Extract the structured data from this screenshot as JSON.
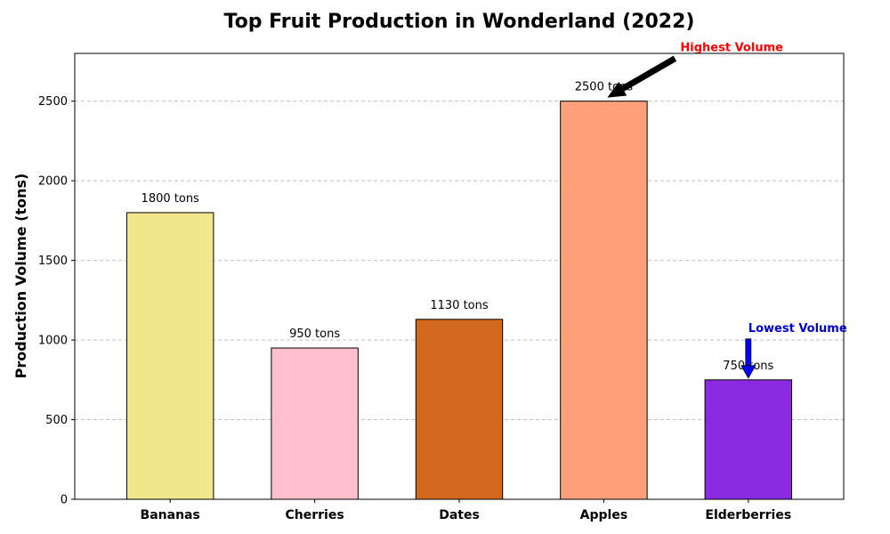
{
  "chart_data": {
    "type": "bar",
    "title": "Top Fruit Production in Wonderland (2022)",
    "xlabel": "",
    "ylabel": "Production Volume (tons)",
    "categories": [
      "Bananas",
      "Cherries",
      "Dates",
      "Apples",
      "Elderberries"
    ],
    "values": [
      1800,
      950,
      1130,
      2500,
      750
    ],
    "bar_labels": [
      "1800 tons",
      "950 tons",
      "1130 tons",
      "2500 tons",
      "750 tons"
    ],
    "colors": [
      "#f0e68c",
      "#ffc0cb",
      "#d2691e",
      "#ffa07a",
      "#8a2be2"
    ],
    "edge_color": "#000000",
    "ylim": [
      0,
      2800
    ],
    "yticks": [
      0,
      500,
      1000,
      1500,
      2000,
      2500
    ],
    "grid": "y-dashed",
    "annotations": [
      {
        "text": "Highest Volume",
        "target_category": "Apples",
        "target_value": 2500,
        "color": "#ff0000",
        "arrow_color": "#000000"
      },
      {
        "text": "Lowest Volume",
        "target_category": "Elderberries",
        "target_value": 750,
        "color": "#0000cd",
        "arrow_color": "#0000ff"
      }
    ]
  }
}
